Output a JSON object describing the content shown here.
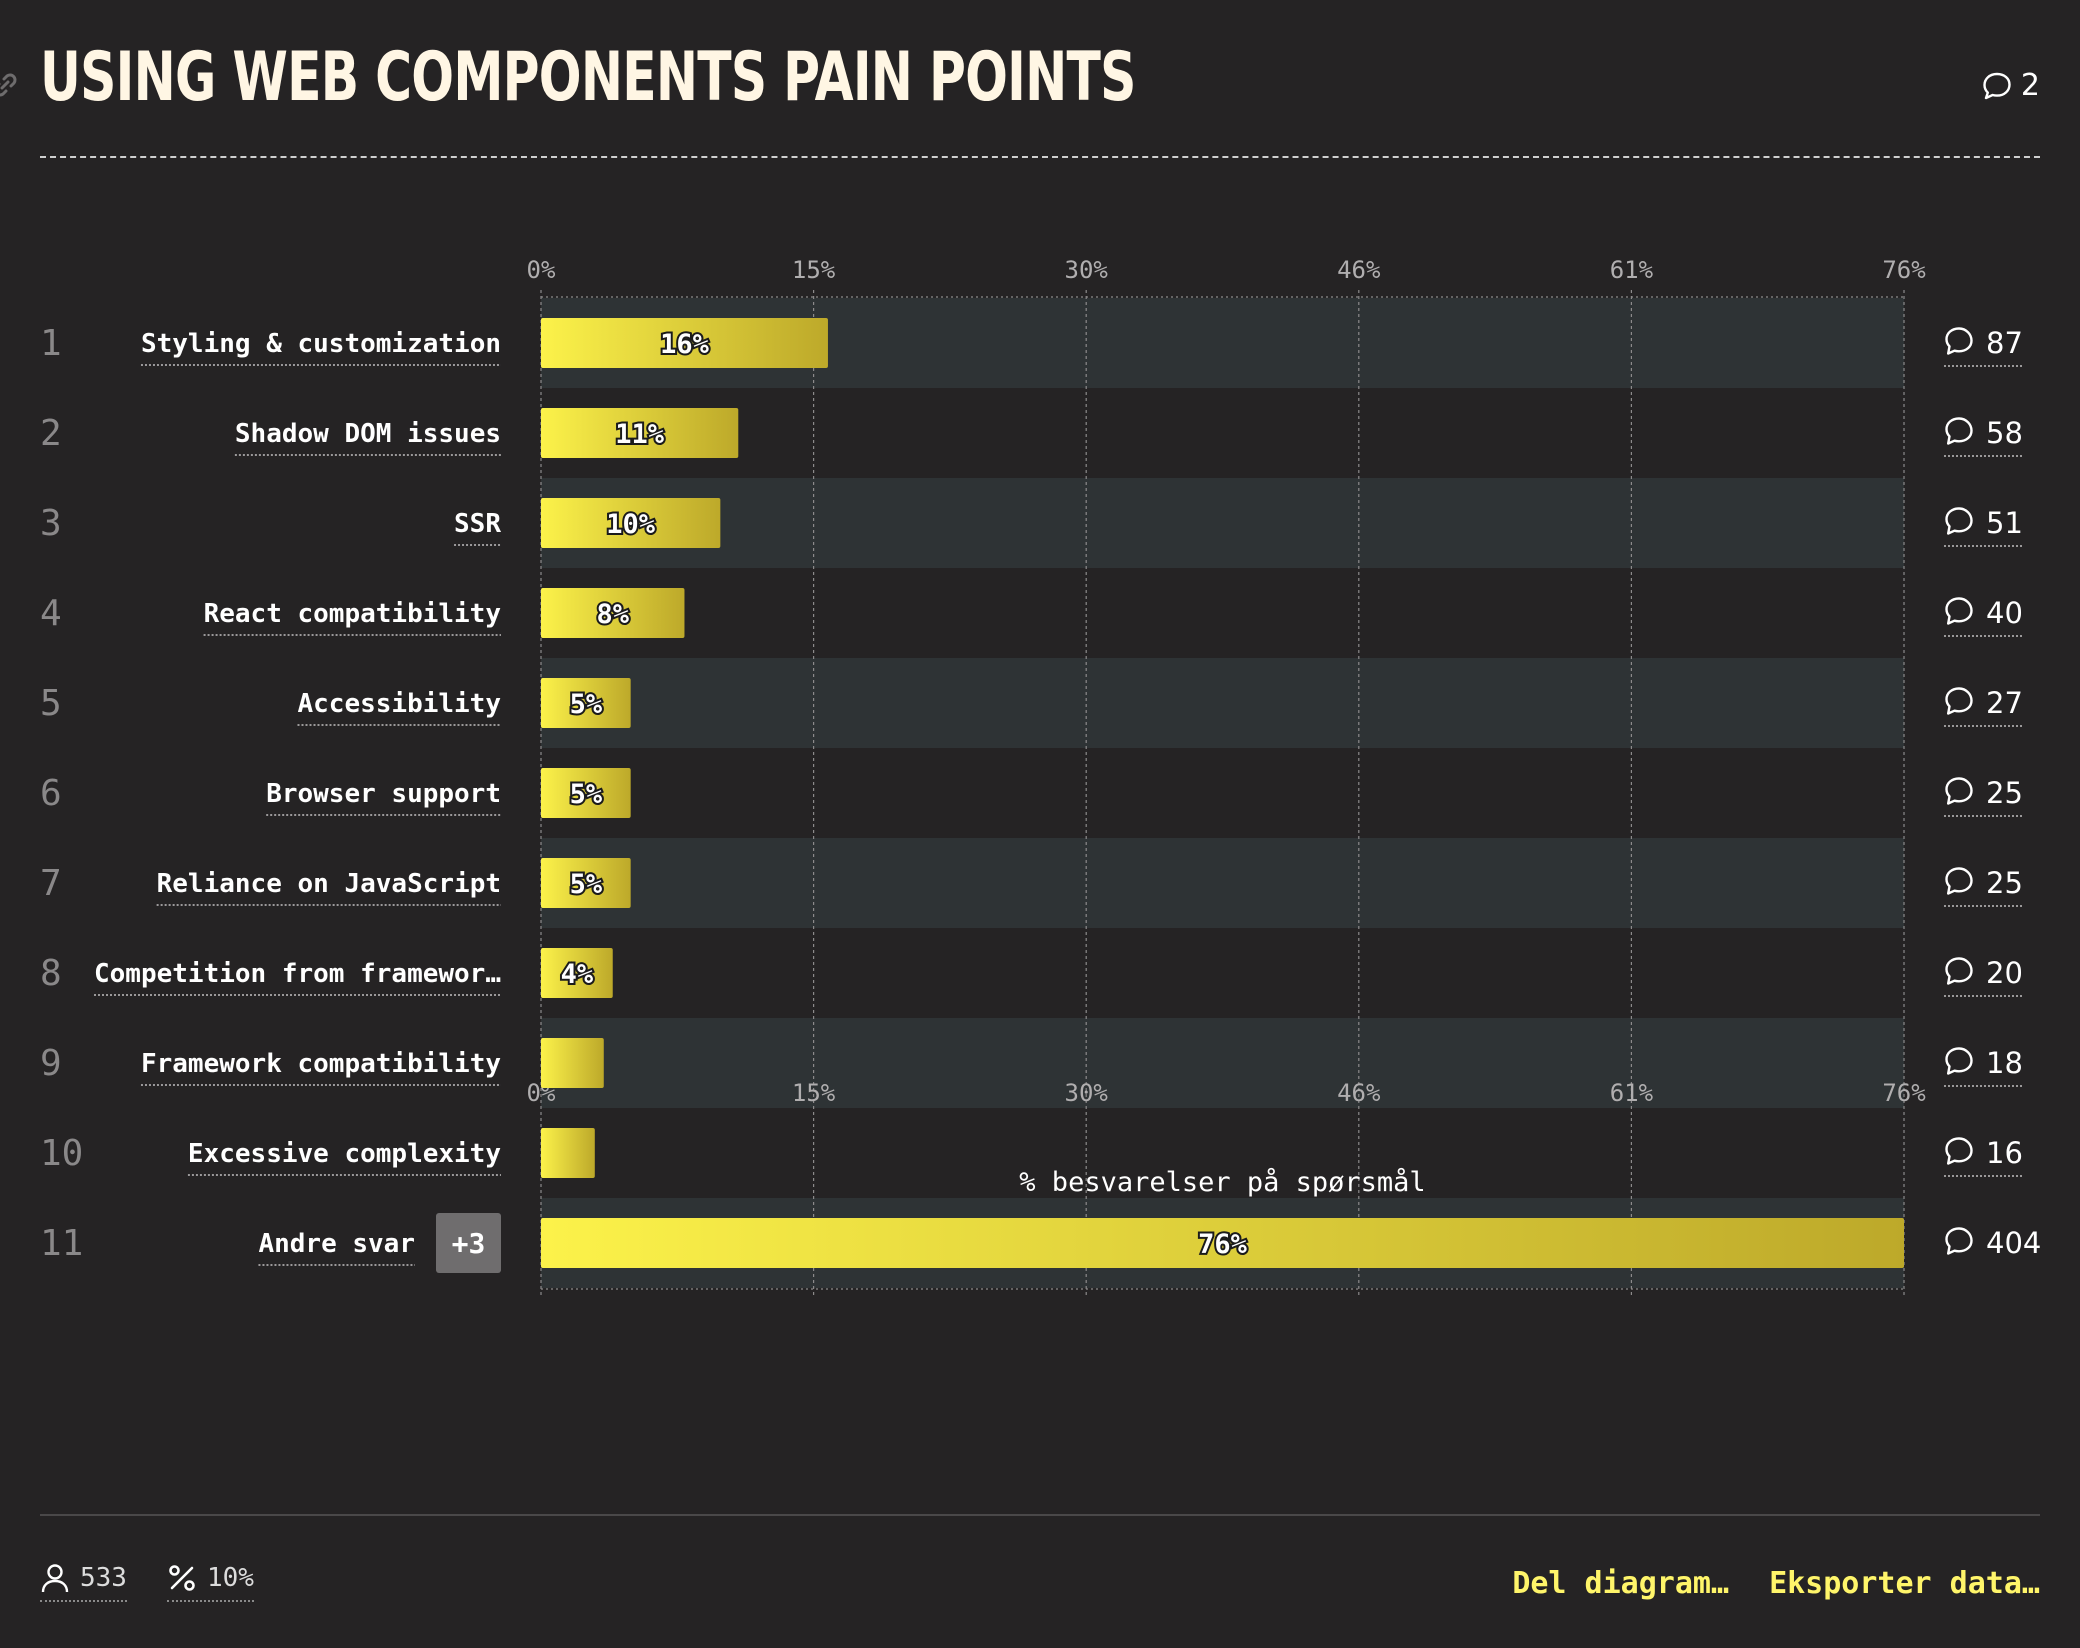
{
  "title": "USING WEB COMPONENTS PAIN POINTS",
  "header_comments": "2",
  "chart_data": {
    "type": "bar",
    "orientation": "horizontal",
    "xlabel": "% besvarelser på spørsmål",
    "ticks": [
      "0%",
      "15%",
      "30%",
      "46%",
      "61%",
      "76%"
    ],
    "xlim": [
      0,
      76
    ],
    "categories": [
      "Styling & customization",
      "Shadow DOM issues",
      "SSR",
      "React compatibility",
      "Accessibility",
      "Browser support",
      "Reliance on JavaScript",
      "Competition from framewor…",
      "Framework compatibility",
      "Excessive complexity",
      "Andre svar"
    ],
    "ranks": [
      "1",
      "2",
      "3",
      "4",
      "5",
      "6",
      "7",
      "8",
      "9",
      "10",
      "11"
    ],
    "values": [
      16,
      11,
      10,
      8,
      5,
      5,
      5,
      4,
      3.5,
      3,
      76
    ],
    "value_labels": [
      "16%",
      "11%",
      "10%",
      "8%",
      "5%",
      "5%",
      "5%",
      "4%",
      "",
      "",
      "76%"
    ],
    "comments": [
      "87",
      "58",
      "51",
      "40",
      "27",
      "25",
      "25",
      "20",
      "18",
      "16",
      "404"
    ],
    "extra_badge": "+3",
    "bar_gradient": [
      "#fcf24a",
      "#bda92a"
    ]
  },
  "footer": {
    "respondents": "533",
    "percent": "10%",
    "share_label": "Del diagram…",
    "export_label": "Eksporter data…"
  },
  "icons": {
    "comment": "comment-icon",
    "user": "user-icon",
    "percent": "percent-icon",
    "link": "link-icon"
  }
}
